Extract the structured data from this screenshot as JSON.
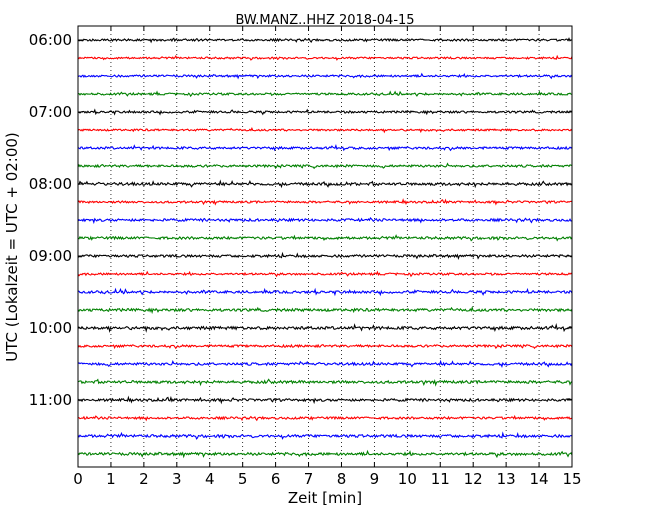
{
  "chart_data": {
    "type": "line",
    "title": "BW.MANZ..HHZ 2018-04-15",
    "xlabel": "Zeit  [min]",
    "ylabel": "UTC (Lokalzeit = UTC + 02:00)",
    "xlim": [
      0,
      15
    ],
    "x_ticks": [
      "0",
      "1",
      "2",
      "3",
      "4",
      "5",
      "6",
      "7",
      "8",
      "9",
      "10",
      "11",
      "12",
      "13",
      "14",
      "15"
    ],
    "y_ticks": [
      "06:00",
      "07:00",
      "08:00",
      "09:00",
      "10:00",
      "11:00"
    ],
    "grid": "vertical dotted",
    "trace_colors": [
      "#000000",
      "#ff0000",
      "#0000ff",
      "#008000"
    ],
    "traces": [
      {
        "start": "06:00",
        "amplitude": 1.0
      },
      {
        "start": "06:15",
        "amplitude": 0.9
      },
      {
        "start": "06:30",
        "amplitude": 1.0
      },
      {
        "start": "06:45",
        "amplitude": 1.0
      },
      {
        "start": "07:00",
        "amplitude": 1.0
      },
      {
        "start": "07:15",
        "amplitude": 0.9
      },
      {
        "start": "07:30",
        "amplitude": 1.1
      },
      {
        "start": "07:45",
        "amplitude": 1.1
      },
      {
        "start": "08:00",
        "amplitude": 1.3
      },
      {
        "start": "08:15",
        "amplitude": 1.0
      },
      {
        "start": "08:30",
        "amplitude": 1.2
      },
      {
        "start": "08:45",
        "amplitude": 1.2
      },
      {
        "start": "09:00",
        "amplitude": 1.2
      },
      {
        "start": "09:15",
        "amplitude": 1.0
      },
      {
        "start": "09:30",
        "amplitude": 1.2
      },
      {
        "start": "09:45",
        "amplitude": 1.3
      },
      {
        "start": "10:00",
        "amplitude": 1.4
      },
      {
        "start": "10:15",
        "amplitude": 1.1
      },
      {
        "start": "10:30",
        "amplitude": 1.2
      },
      {
        "start": "10:45",
        "amplitude": 1.3
      },
      {
        "start": "11:00",
        "amplitude": 1.2
      },
      {
        "start": "11:15",
        "amplitude": 1.1
      },
      {
        "start": "11:30",
        "amplitude": 1.3
      },
      {
        "start": "11:45",
        "amplitude": 1.3
      }
    ]
  }
}
